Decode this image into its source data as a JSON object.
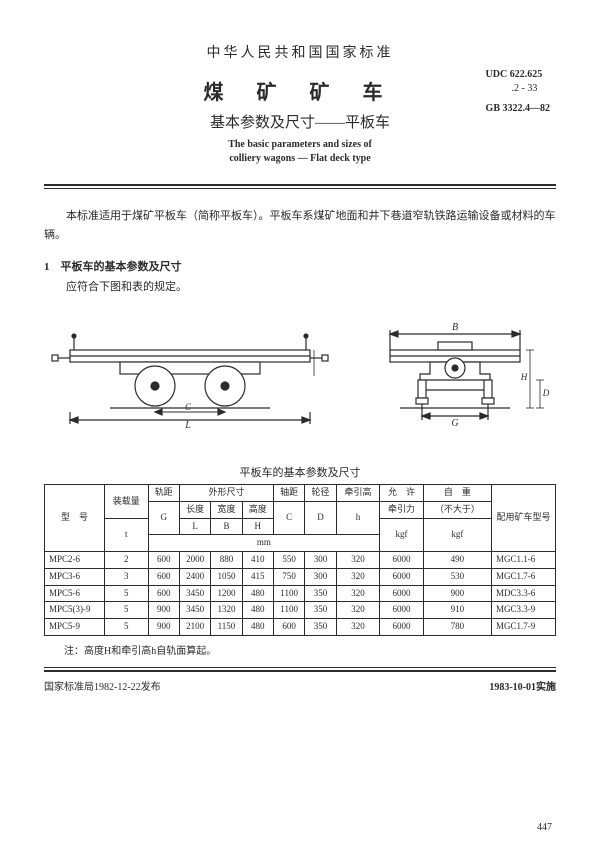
{
  "header": {
    "authority": "中华人民共和国国家标准",
    "udc_label": "UDC",
    "udc_code1": "622.625",
    "udc_code2": ".2 - 33",
    "gb_label": "GB",
    "gb_code": "3322.4—82",
    "title_cn_line1": "煤 矿 矿 车",
    "title_cn_line2": "基本参数及尺寸——平板车",
    "title_en_line1": "The basic parameters and sizes of",
    "title_en_line2": "colliery wagons — Flat deck type"
  },
  "body": {
    "intro": "本标准适用于煤矿平板车（简称平板车）。平板车系煤矿地面和井下巷道窄轨铁路运输设备或材料的车辆。",
    "section1_heading": "1　平板车的基本参数及尺寸",
    "section1_text": "应符合下图和表的规定。"
  },
  "figure": {
    "left": {
      "labels": {
        "L": "L",
        "C": "C"
      }
    },
    "right": {
      "labels": {
        "B": "B",
        "G": "G",
        "H": "H",
        "D": "D"
      }
    },
    "colors": {
      "stroke": "#2b2b2b",
      "fill": "#ffffff"
    }
  },
  "table": {
    "caption": "平板车的基本参数及尺寸",
    "head": {
      "model": "型　号",
      "load": "装载量",
      "load_unit": "t",
      "gauge": "轨距",
      "gauge_sym": "G",
      "outer": "外形尺寸",
      "len": "长度",
      "len_sym": "L",
      "wid": "宽度",
      "wid_sym": "B",
      "hei": "高度",
      "hei_sym": "H",
      "wheelbase": "轴距",
      "wheelbase_sym": "C",
      "wheeldia": "轮径",
      "wheeldia_sym": "D",
      "towh": "牵引高",
      "towh_sym": "h",
      "allow": "允　许",
      "allow2": "牵引力",
      "allow_unit": "kgf",
      "selfw": "自　重",
      "selfw2": "（不大于）",
      "selfw_unit": "kgf",
      "match": "配用矿车型号",
      "mm": "mm"
    },
    "rows": [
      {
        "model": "MPC2-6",
        "load": "2",
        "g": "600",
        "l": "2000",
        "b": "880",
        "h": "410",
        "c": "550",
        "d": "300",
        "hh": "320",
        "allow": "6000",
        "selfw": "490",
        "match": "MGC1.1-6"
      },
      {
        "model": "MPC3-6",
        "load": "3",
        "g": "600",
        "l": "2400",
        "b": "1050",
        "h": "415",
        "c": "750",
        "d": "300",
        "hh": "320",
        "allow": "6000",
        "selfw": "530",
        "match": "MGC1.7-6"
      },
      {
        "model": "MPC5-6",
        "load": "5",
        "g": "600",
        "l": "3450",
        "b": "1200",
        "h": "480",
        "c": "1100",
        "d": "350",
        "hh": "320",
        "allow": "6000",
        "selfw": "900",
        "match": "MDC3.3-6"
      },
      {
        "model": "MPC5(3)-9",
        "load": "5",
        "g": "900",
        "l": "3450",
        "b": "1320",
        "h": "480",
        "c": "1100",
        "d": "350",
        "hh": "320",
        "allow": "6000",
        "selfw": "910",
        "match": "MGC3.3-9"
      },
      {
        "model": "MPC5-9",
        "load": "5",
        "g": "900",
        "l": "2100",
        "b": "1150",
        "h": "480",
        "c": "600",
        "d": "350",
        "hh": "320",
        "allow": "6000",
        "selfw": "780",
        "match": "MGC1.7-9"
      }
    ],
    "note": "注：高度H和牵引高h自轨面算起。"
  },
  "footer": {
    "left": "国家标准局1982-12-22发布",
    "right": "1983-10-01实施",
    "page": "447"
  }
}
